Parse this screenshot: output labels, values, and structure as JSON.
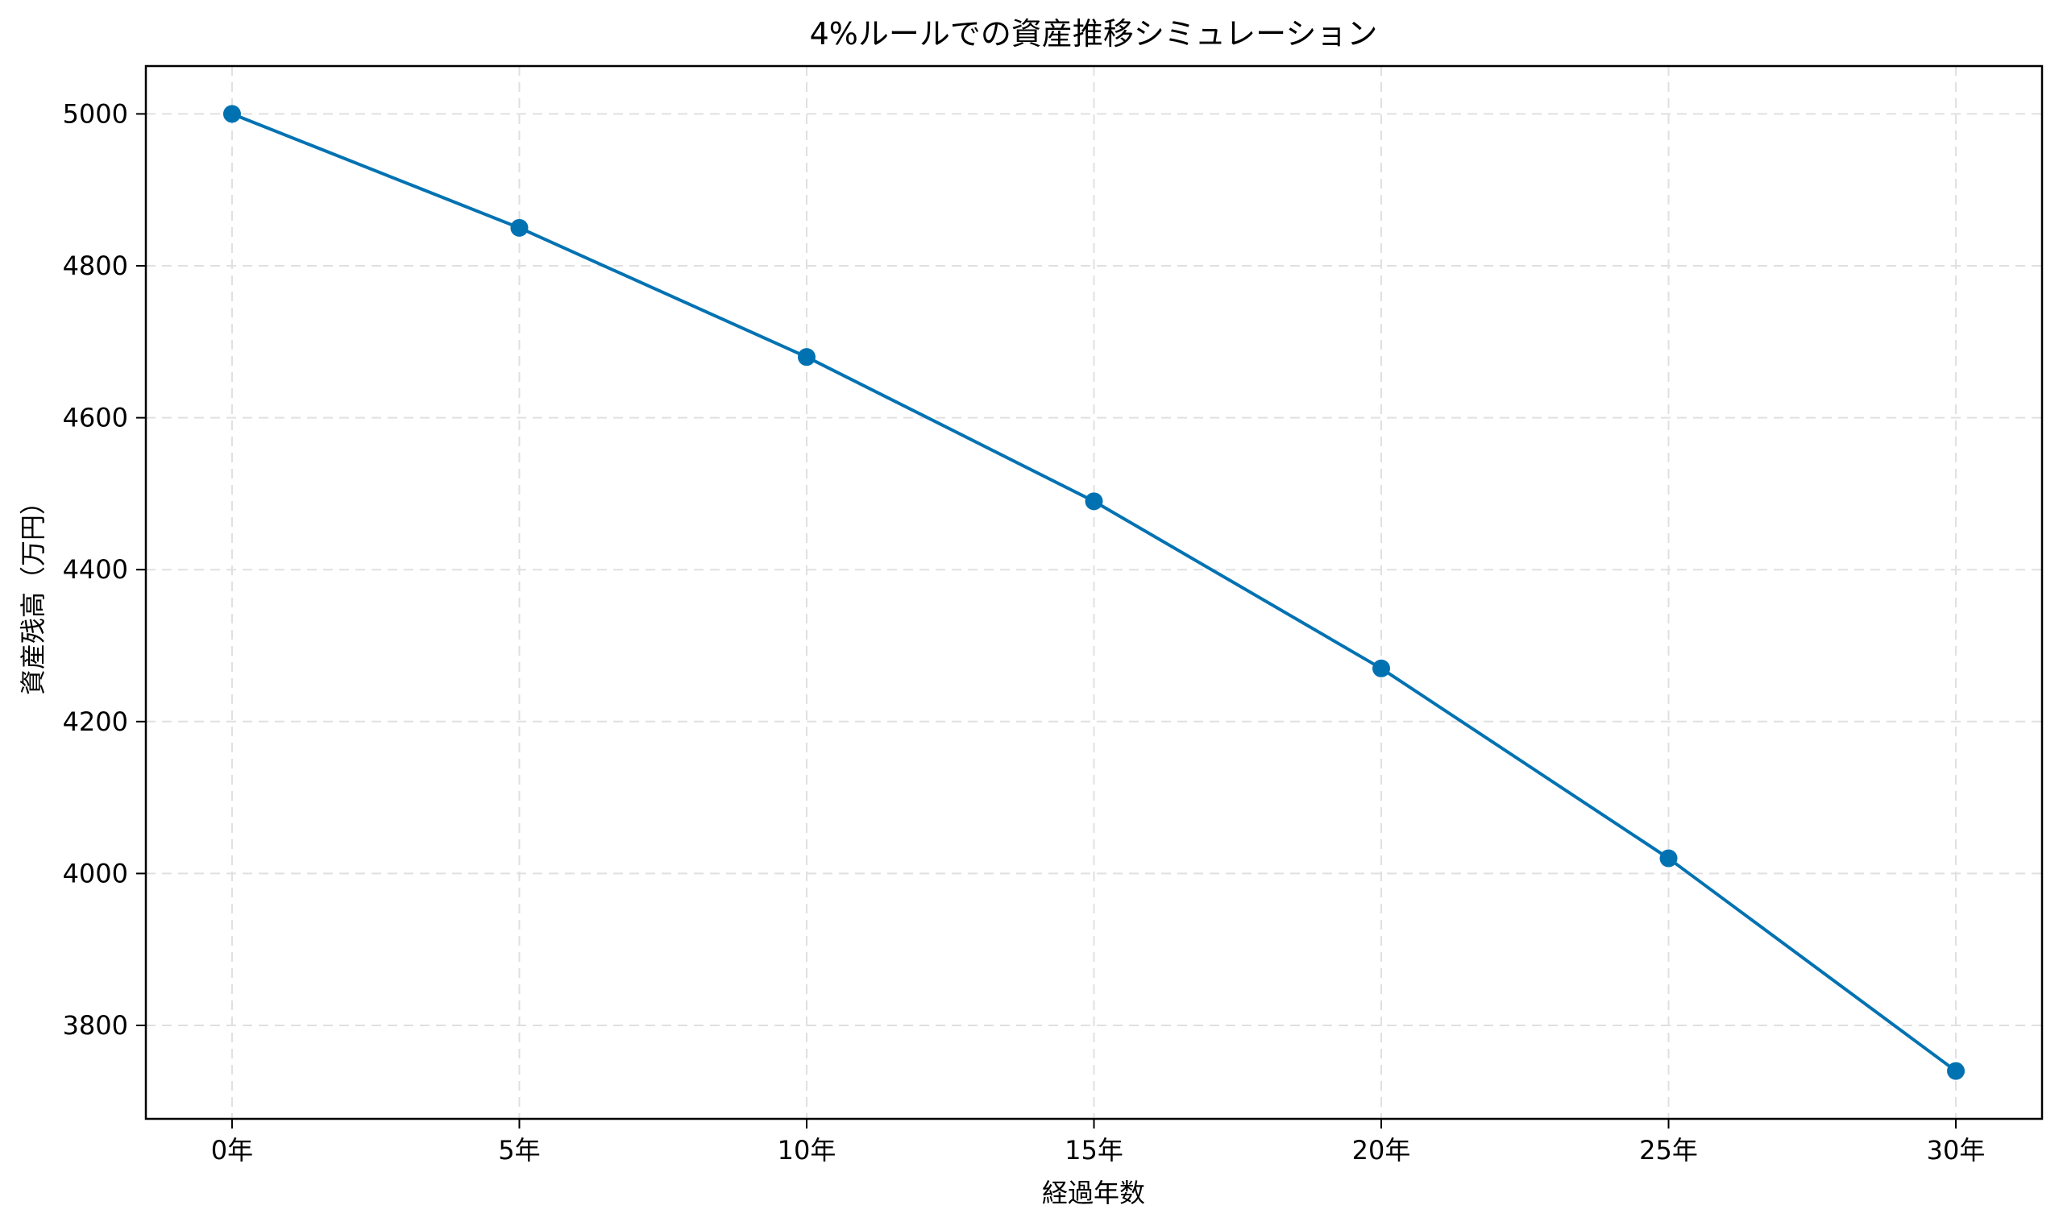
{
  "chart_data": {
    "type": "line",
    "title": "4%ルールでの資産推移シミュレーション",
    "xlabel": "経過年数",
    "ylabel": "資産残高（万円）",
    "categories": [
      "0年",
      "5年",
      "10年",
      "15年",
      "20年",
      "25年",
      "30年"
    ],
    "x": [
      0,
      5,
      10,
      15,
      20,
      25,
      30
    ],
    "series": [
      {
        "name": "資産残高",
        "values": [
          5000,
          4850,
          4680,
          4490,
          4270,
          4020,
          3740
        ],
        "color": "#0072b2",
        "marker": "circle"
      }
    ],
    "xlim": [
      -1.5,
      31.5
    ],
    "ylim": [
      3677,
      5063
    ],
    "yticks": [
      3800,
      4000,
      4200,
      4400,
      4600,
      4800,
      5000
    ],
    "grid": true,
    "grid_style": "dashed",
    "legend": null
  }
}
